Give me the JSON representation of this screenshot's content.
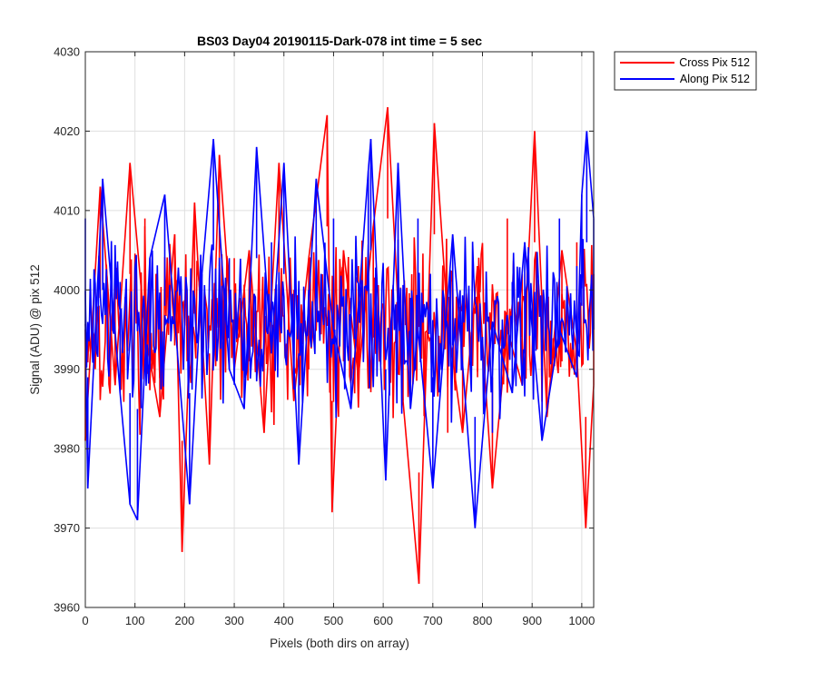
{
  "chart_data": {
    "type": "line",
    "title": "BS03 Day04 20190115-Dark-078 int time = 5 sec",
    "xlabel": "Pixels (both dirs on array)",
    "ylabel": "Signal (ADU) @ pix 512",
    "xlim": [
      0,
      1024
    ],
    "ylim": [
      3960,
      4030
    ],
    "xticks": [
      0,
      100,
      200,
      300,
      400,
      500,
      600,
      700,
      800,
      900,
      1000
    ],
    "yticks": [
      3960,
      3970,
      3980,
      3990,
      4000,
      4010,
      4020,
      4030
    ],
    "grid": true,
    "legend_position": "outside-top-right",
    "series": [
      {
        "name": "Cross Pix 512",
        "color": "#ff0000",
        "x": [
          0,
          30,
          60,
          90,
          120,
          150,
          180,
          195,
          220,
          250,
          270,
          300,
          330,
          360,
          390,
          420,
          450,
          487,
          497,
          520,
          550,
          580,
          609,
          640,
          672,
          703,
          730,
          760,
          790,
          820,
          850,
          880,
          905,
          930,
          960,
          990,
          1008,
          1024
        ],
        "y": [
          3981,
          4013,
          3988,
          4016,
          3995,
          3984,
          4007,
          3967,
          4011,
          3978,
          4017,
          3990,
          4005,
          3982,
          4016,
          3986,
          4004,
          4022,
          3972,
          4005,
          3989,
          4008,
          4023,
          3986,
          3963,
          4021,
          3996,
          3982,
          4003,
          3975,
          3995,
          3988,
          4020,
          3984,
          4005,
          3992,
          3970,
          3988
        ]
      },
      {
        "name": "Along Pix 512",
        "color": "#0000ff",
        "x": [
          0,
          5,
          35,
          70,
          90,
          105,
          130,
          160,
          210,
          235,
          258,
          290,
          320,
          345,
          375,
          400,
          430,
          465,
          500,
          535,
          570,
          575,
          605,
          630,
          655,
          670,
          700,
          740,
          785,
          820,
          860,
          885,
          920,
          955,
          990,
          1000,
          1010,
          1024
        ],
        "y": [
          3995,
          3975,
          4014,
          3987,
          3973,
          3971,
          4004,
          4012,
          3973,
          4002,
          4019,
          3990,
          3985,
          4018,
          3992,
          4016,
          3978,
          4014,
          3995,
          3985,
          4015,
          4019,
          3976,
          4016,
          3985,
          3995,
          3975,
          4007,
          3970,
          3996,
          3987,
          4006,
          3981,
          3995,
          3989,
          4012,
          4020,
          4009
        ]
      }
    ]
  }
}
